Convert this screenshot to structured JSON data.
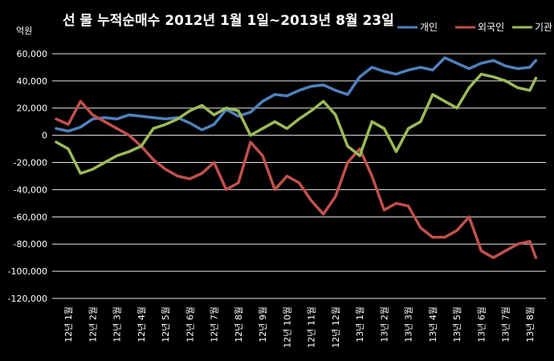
{
  "chart_data": {
    "type": "line",
    "title": "선 물 누적순매수 2012년 1월 1일~2013년 8월 23일",
    "unit_label": "억원",
    "ylim": [
      -120000,
      70000
    ],
    "y_ticks": [
      -120000,
      -100000,
      -80000,
      -60000,
      -40000,
      -20000,
      0,
      20000,
      40000,
      60000
    ],
    "y_tick_labels": [
      "-120,000",
      "-100,000",
      "-80,000",
      "-60,000",
      "-40,000",
      "-20,000",
      "0",
      "20,000",
      "40,000",
      "60,000"
    ],
    "categories": [
      "12년 1월",
      "12년 2월",
      "12년 3월",
      "12년 4월",
      "12년 5월",
      "12년 6월",
      "12년 7월",
      "12년 8월",
      "12년 9월",
      "12년 10월",
      "12년 11월",
      "12년 12월",
      "13년 1월",
      "13년 2월",
      "13년 3월",
      "13년 4월",
      "13년 5월",
      "13년 6월",
      "13년 7월",
      "13년 8월"
    ],
    "grid": true,
    "legend_position": "top-right",
    "x_note": "x values are month positions (0 = start of 12년 1월, 19.75 = 2013년 8월 23일)",
    "series": [
      {
        "name": "개인",
        "color": "#4f81bd",
        "x": [
          0,
          0.5,
          1,
          1.5,
          2,
          2.5,
          3,
          3.5,
          4,
          4.5,
          5,
          5.5,
          6,
          6.5,
          7,
          7.5,
          8,
          8.5,
          9,
          9.5,
          10,
          10.5,
          11,
          11.5,
          12,
          12.5,
          13,
          13.5,
          14,
          14.5,
          15,
          15.5,
          16,
          16.5,
          17,
          17.5,
          18,
          18.5,
          19,
          19.5,
          19.75
        ],
        "values": [
          5000,
          3000,
          6000,
          12000,
          13000,
          12000,
          15000,
          14000,
          13000,
          12000,
          13000,
          9000,
          4000,
          8000,
          19000,
          14000,
          17000,
          25000,
          30000,
          29000,
          33000,
          36000,
          37000,
          33000,
          30000,
          43000,
          50000,
          47000,
          45000,
          48000,
          50000,
          48000,
          57000,
          53000,
          49000,
          53000,
          55000,
          51000,
          49000,
          50000,
          55000
        ]
      },
      {
        "name": "외국인",
        "color": "#c0504d",
        "x": [
          0,
          0.5,
          1,
          1.5,
          2,
          2.5,
          3,
          3.5,
          4,
          4.5,
          5,
          5.5,
          6,
          6.5,
          7,
          7.5,
          8,
          8.5,
          9,
          9.5,
          10,
          10.5,
          11,
          11.5,
          12,
          12.5,
          13,
          13.5,
          14,
          14.5,
          15,
          15.5,
          16,
          16.5,
          17,
          17.5,
          18,
          18.5,
          19,
          19.5,
          19.75
        ],
        "values": [
          12000,
          8000,
          25000,
          15000,
          10000,
          5000,
          0,
          -8000,
          -18000,
          -25000,
          -30000,
          -32000,
          -28000,
          -20000,
          -40000,
          -35000,
          -5000,
          -15000,
          -40000,
          -30000,
          -35000,
          -48000,
          -58000,
          -45000,
          -20000,
          -10000,
          -30000,
          -55000,
          -50000,
          -52000,
          -68000,
          -75000,
          -75000,
          -70000,
          -60000,
          -85000,
          -90000,
          -85000,
          -80000,
          -78000,
          -90000
        ]
      },
      {
        "name": "기관",
        "color": "#9bbb59",
        "x": [
          0,
          0.5,
          1,
          1.5,
          2,
          2.5,
          3,
          3.5,
          4,
          4.5,
          5,
          5.5,
          6,
          6.5,
          7,
          7.5,
          8,
          8.5,
          9,
          9.5,
          10,
          10.5,
          11,
          11.5,
          12,
          12.5,
          13,
          13.5,
          14,
          14.5,
          15,
          15.5,
          16,
          16.5,
          17,
          17.5,
          18,
          18.5,
          19,
          19.5,
          19.75
        ],
        "values": [
          -5000,
          -10000,
          -28000,
          -25000,
          -20000,
          -15000,
          -12000,
          -8000,
          5000,
          8000,
          12000,
          18000,
          22000,
          15000,
          20000,
          18000,
          0,
          5000,
          10000,
          5000,
          12000,
          18000,
          25000,
          15000,
          -8000,
          -15000,
          10000,
          5000,
          -12000,
          5000,
          10000,
          30000,
          25000,
          20000,
          35000,
          45000,
          43000,
          40000,
          35000,
          33000,
          42000
        ]
      }
    ]
  }
}
